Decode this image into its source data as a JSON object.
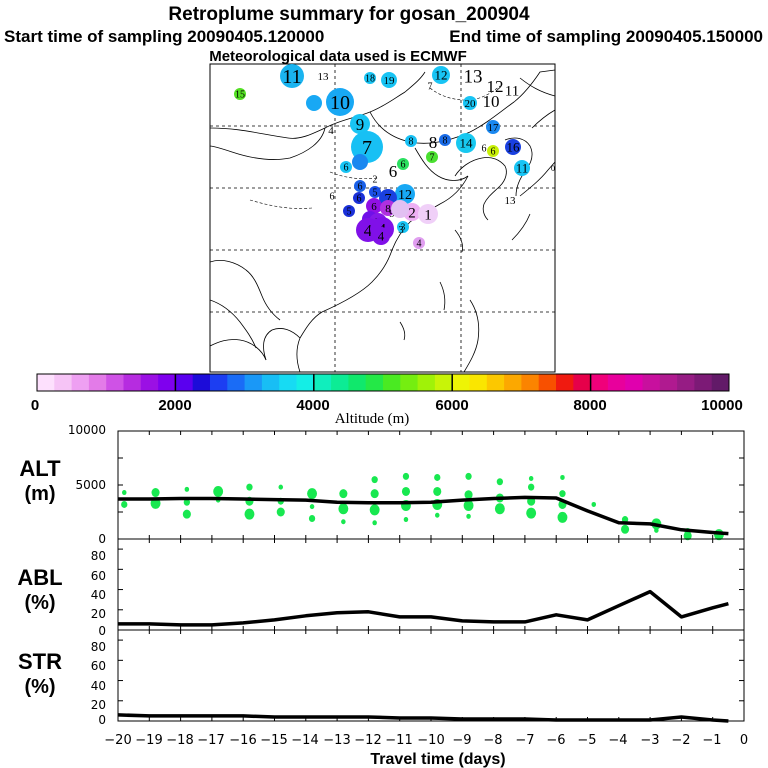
{
  "header": {
    "title": "Retroplume summary for gosan_200904",
    "start_label": "Start time of sampling 20090405.120000",
    "end_label": "End time of sampling 20090405.150000",
    "met_label": "Meteorological data used is ECMWF"
  },
  "colorbar": {
    "ticks": [
      "0",
      "2000",
      "4000",
      "6000",
      "8000",
      "10000"
    ],
    "label": "Altitude (m)",
    "colors": [
      "#fde0fd",
      "#f6c4f6",
      "#eea0f2",
      "#e37be8",
      "#cf52e6",
      "#b62ce0",
      "#9b10e4",
      "#7f00ee",
      "#5a00ef",
      "#1c0cd9",
      "#1c3ef2",
      "#1a6cf6",
      "#1a98f7",
      "#18bef5",
      "#17dbf3",
      "#14eee6",
      "#10eebd",
      "#0cec95",
      "#10e86c",
      "#24e847",
      "#4aea22",
      "#75ee10",
      "#a0f208",
      "#c8f408",
      "#eef405",
      "#fae600",
      "#fcc800",
      "#fca800",
      "#fb8400",
      "#f85000",
      "#f01a10",
      "#e6004a",
      "#f0007a",
      "#e8009c",
      "#e000ae",
      "#c8109e",
      "#b01a90",
      "#961c84",
      "#7c1a76",
      "#621a68"
    ]
  },
  "map_labels": [
    {
      "t": "11",
      "c": "#1ab4f0"
    },
    {
      "t": "13",
      "c": "#1ae4e0"
    },
    {
      "t": "15",
      "c": "#54e024"
    },
    {
      "t": "18",
      "c": "#18c4f4"
    },
    {
      "t": "19",
      "c": "#18c4f4"
    },
    {
      "t": "12",
      "c": "#18c4f4"
    },
    {
      "t": "13",
      "c": "#18d0f0"
    },
    {
      "t": "7",
      "c": "#e0e810"
    },
    {
      "t": "12",
      "c": "#18c4f4"
    },
    {
      "t": "11",
      "c": "#18c4f4"
    },
    {
      "t": "20",
      "c": "#18c4f4"
    },
    {
      "t": "10",
      "c": "#18c4f4"
    },
    {
      "t": "10",
      "c": "#18a8f4"
    },
    {
      "t": "9",
      "c": "#18a8f4"
    },
    {
      "t": "4",
      "c": "#18b4f4"
    },
    {
      "t": "9",
      "c": "#18c4f4"
    },
    {
      "t": "17",
      "c": "#1a88f0"
    },
    {
      "t": "7",
      "c": "#18c0f4"
    },
    {
      "t": "8",
      "c": "#18c0f4"
    },
    {
      "t": "8",
      "c": "#1aa0f0"
    },
    {
      "t": "8",
      "c": "#1a6ce8"
    },
    {
      "t": "14",
      "c": "#18c8f0"
    },
    {
      "t": "6",
      "c": "#2ae060"
    },
    {
      "t": "6",
      "c": "#c8f008"
    },
    {
      "t": "16",
      "c": "#1a40e0"
    },
    {
      "t": "5",
      "c": "#1a88f0"
    },
    {
      "t": "6",
      "c": "#18c4f4"
    },
    {
      "t": "6",
      "c": "#18c4f4"
    },
    {
      "t": "2",
      "c": "#18d8f0"
    },
    {
      "t": "6",
      "c": "#2ae060"
    },
    {
      "t": "7",
      "c": "#4ae030"
    },
    {
      "t": "11",
      "c": "#18c4f4"
    },
    {
      "t": "12",
      "c": "#18a8f4"
    },
    {
      "t": "6",
      "c": "#1a60e8"
    },
    {
      "t": "5",
      "c": "#1a50e8"
    },
    {
      "t": "7",
      "c": "#1a40e0"
    },
    {
      "t": "6",
      "c": "#1a30d8"
    },
    {
      "t": "5",
      "c": "#1a30d8"
    },
    {
      "t": "6",
      "c": "#9010e4"
    },
    {
      "t": "8",
      "c": "#b030e0"
    },
    {
      "t": "5",
      "c": "#7010e8"
    },
    {
      "t": "3",
      "c": "#18c4f4"
    },
    {
      "t": "2",
      "c": "#eeb0f4"
    },
    {
      "t": "9",
      "c": "#eeb0f4"
    },
    {
      "t": "7",
      "c": "#e2c0f2"
    },
    {
      "t": "1",
      "c": "#f0d0f8"
    },
    {
      "t": "2",
      "c": "#8418e8"
    },
    {
      "t": "4",
      "c": "#8010e8"
    },
    {
      "t": "4",
      "c": "#8010e8"
    },
    {
      "t": "4",
      "c": "#8010e8"
    },
    {
      "t": "3",
      "c": "#e6b4f2"
    },
    {
      "t": "4",
      "c": "#e09ef0"
    },
    {
      "t": "13",
      "c": "#18d0a0"
    },
    {
      "t": "6",
      "c": "#1a5ce8"
    },
    {
      "t": "6",
      "c": "#18c4f4"
    },
    {
      "t": "0",
      "c": "#2ae060"
    }
  ],
  "chart_data": [
    {
      "type": "line+scatter",
      "panel_label": "ALT",
      "unit_label": "(m)",
      "yticks": [
        "10000",
        "5000",
        "0"
      ],
      "ylim": [
        0,
        10000
      ],
      "x": [
        -20,
        -19,
        -18,
        -17,
        -16,
        -15,
        -14,
        -13,
        -12,
        -11,
        -10,
        -9,
        -8,
        -7,
        -6,
        -5,
        -4,
        -3,
        -2,
        -1,
        -0.5
      ],
      "values": [
        3700,
        3700,
        3750,
        3750,
        3700,
        3650,
        3600,
        3400,
        3350,
        3350,
        3400,
        3600,
        3750,
        3850,
        3800,
        2600,
        1500,
        1400,
        850,
        600,
        500
      ],
      "scatter": {
        "color": "#18e850",
        "points": [
          {
            "x": -19.8,
            "y": 4300
          },
          {
            "x": -19.8,
            "y": 3200
          },
          {
            "x": -18.8,
            "y": 4300
          },
          {
            "x": -18.8,
            "y": 3300
          },
          {
            "x": -17.8,
            "y": 4600
          },
          {
            "x": -17.8,
            "y": 3400
          },
          {
            "x": -17.8,
            "y": 2300
          },
          {
            "x": -16.8,
            "y": 4400
          },
          {
            "x": -16.8,
            "y": 3600
          },
          {
            "x": -15.8,
            "y": 4800
          },
          {
            "x": -15.8,
            "y": 3500
          },
          {
            "x": -15.8,
            "y": 2300
          },
          {
            "x": -14.8,
            "y": 4800
          },
          {
            "x": -14.8,
            "y": 3500
          },
          {
            "x": -14.8,
            "y": 2500
          },
          {
            "x": -13.8,
            "y": 4200
          },
          {
            "x": -13.8,
            "y": 3000
          },
          {
            "x": -13.8,
            "y": 1900
          },
          {
            "x": -12.8,
            "y": 4200
          },
          {
            "x": -12.8,
            "y": 2800
          },
          {
            "x": -12.8,
            "y": 1600
          },
          {
            "x": -11.8,
            "y": 5500
          },
          {
            "x": -11.8,
            "y": 4200
          },
          {
            "x": -11.8,
            "y": 2700
          },
          {
            "x": -11.8,
            "y": 1500
          },
          {
            "x": -10.8,
            "y": 5800
          },
          {
            "x": -10.8,
            "y": 4400
          },
          {
            "x": -10.8,
            "y": 3100
          },
          {
            "x": -10.8,
            "y": 1800
          },
          {
            "x": -9.8,
            "y": 5700
          },
          {
            "x": -9.8,
            "y": 4400
          },
          {
            "x": -9.8,
            "y": 3200
          },
          {
            "x": -9.8,
            "y": 2200
          },
          {
            "x": -8.8,
            "y": 5800
          },
          {
            "x": -8.8,
            "y": 4100
          },
          {
            "x": -8.8,
            "y": 3100
          },
          {
            "x": -8.8,
            "y": 2100
          },
          {
            "x": -7.8,
            "y": 5300
          },
          {
            "x": -7.8,
            "y": 3800
          },
          {
            "x": -7.8,
            "y": 2800
          },
          {
            "x": -6.8,
            "y": 5600
          },
          {
            "x": -6.8,
            "y": 4800
          },
          {
            "x": -6.8,
            "y": 3500
          },
          {
            "x": -6.8,
            "y": 2400
          },
          {
            "x": -5.8,
            "y": 5700
          },
          {
            "x": -5.8,
            "y": 4200
          },
          {
            "x": -5.8,
            "y": 3200
          },
          {
            "x": -5.8,
            "y": 2000
          },
          {
            "x": -4.8,
            "y": 3200
          },
          {
            "x": -3.8,
            "y": 1800
          },
          {
            "x": -3.8,
            "y": 900
          },
          {
            "x": -2.8,
            "y": 1400
          },
          {
            "x": -2.8,
            "y": 800
          },
          {
            "x": -1.8,
            "y": 700
          },
          {
            "x": -1.8,
            "y": 300
          },
          {
            "x": -0.8,
            "y": 400
          }
        ]
      }
    },
    {
      "type": "line",
      "panel_label": "ABL",
      "unit_label": "(%)",
      "yticks": [
        "80",
        "60",
        "40",
        "20",
        "0"
      ],
      "ylim": [
        0,
        90
      ],
      "x": [
        -20,
        -19,
        -18,
        -17,
        -16,
        -15,
        -14,
        -13,
        -12,
        -11,
        -10,
        -9,
        -8,
        -7,
        -6,
        -5,
        -4,
        -3,
        -2,
        -1,
        -0.5
      ],
      "values": [
        6,
        6,
        5,
        5,
        7,
        10,
        14,
        17,
        18,
        13,
        13,
        9,
        8,
        8,
        15,
        10,
        24,
        38,
        13,
        22,
        26
      ]
    },
    {
      "type": "line",
      "panel_label": "STR",
      "unit_label": "(%)",
      "yticks": [
        "80",
        "60",
        "40",
        "20",
        "0"
      ],
      "ylim": [
        0,
        90
      ],
      "x": [
        -20,
        -19,
        -18,
        -17,
        -16,
        -15,
        -14,
        -13,
        -12,
        -11,
        -10,
        -9,
        -8,
        -7,
        -6,
        -5,
        -4,
        -3,
        -2,
        -1,
        -0.5
      ],
      "values": [
        6,
        5,
        5,
        5,
        5,
        4,
        4,
        4,
        4,
        3,
        3,
        2,
        2,
        2,
        1,
        1,
        1,
        1,
        4,
        1,
        0
      ]
    }
  ],
  "xaxis": {
    "ticks": [
      "−20",
      "−19",
      "−18",
      "−17",
      "−16",
      "−15",
      "−14",
      "−13",
      "−12",
      "−11",
      "−10",
      "−9",
      "−8",
      "−7",
      "−6",
      "−5",
      "−4",
      "−3",
      "−2",
      "−1",
      "0"
    ],
    "label": "Travel time (days)"
  }
}
